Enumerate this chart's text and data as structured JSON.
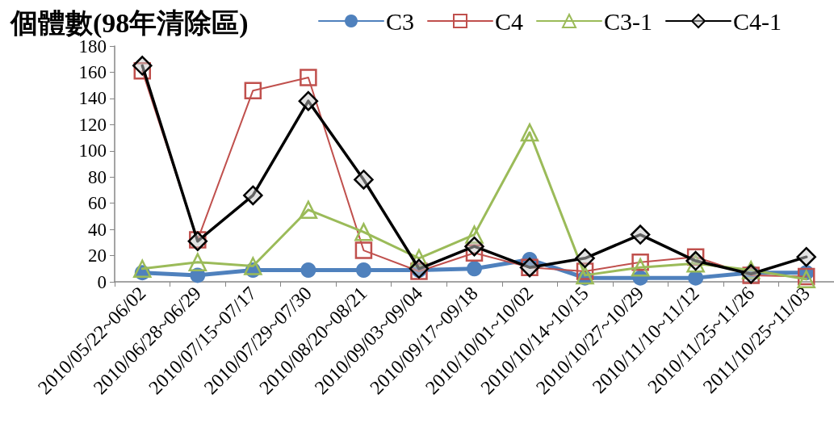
{
  "chart_data": {
    "type": "line",
    "title": "個體數(98年清除區)",
    "categories": [
      "2010/05/22~06/02",
      "2010/06/28~06/29",
      "2010/07/15~07/17",
      "2010/07/29~07/30",
      "2010/08/20~08/21",
      "2010/09/03~09/04",
      "2010/09/17~09/18",
      "2010/10/01~10/02",
      "2010/10/14~10/15",
      "2010/10/27~10/29",
      "2010/11/10~11/12",
      "2010/11/25~11/26",
      "2011/10/25~11/03"
    ],
    "ylim": [
      0,
      180
    ],
    "yticks": [
      0,
      20,
      40,
      60,
      80,
      100,
      120,
      140,
      160,
      180
    ],
    "grid": false,
    "legend": "top right",
    "line_style": "solid",
    "series": [
      {
        "name": "C3",
        "color": "#4f81bd",
        "marker": "circle",
        "values": [
          7,
          5,
          9,
          9,
          9,
          9,
          10,
          17,
          3,
          3,
          3,
          7,
          7
        ]
      },
      {
        "name": "C4",
        "color": "#c0504d",
        "marker": "square",
        "values": [
          161,
          32,
          146,
          156,
          24,
          8,
          22,
          11,
          8,
          15,
          19,
          5,
          4
        ]
      },
      {
        "name": "C3-1",
        "color": "#9bbb59",
        "marker": "triangle",
        "values": [
          10,
          15,
          12,
          55,
          38,
          18,
          36,
          114,
          5,
          11,
          14,
          9,
          2
        ]
      },
      {
        "name": "C4-1",
        "color": "#000000",
        "marker": "diamond",
        "values": [
          165,
          31,
          66,
          138,
          78,
          10,
          27,
          11,
          18,
          36,
          16,
          6,
          19
        ]
      }
    ]
  }
}
